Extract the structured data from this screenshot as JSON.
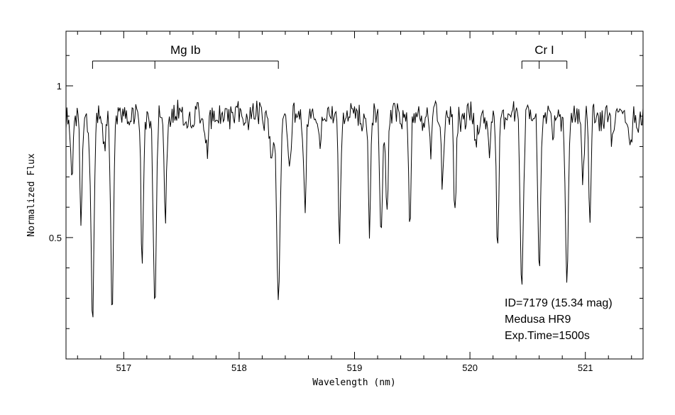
{
  "chart_data": {
    "type": "line",
    "title": "",
    "xlabel": "Wavelength (nm)",
    "ylabel": "Normalized Flux",
    "xlim": [
      516.5,
      521.5
    ],
    "ylim": [
      0.1,
      1.18
    ],
    "x_ticks": [
      517,
      518,
      519,
      520,
      521
    ],
    "x_tick_labels": [
      "517",
      "518",
      "519",
      "520",
      "521"
    ],
    "y_ticks": [
      0.5,
      1
    ],
    "y_tick_labels": [
      "0.5",
      "1"
    ],
    "grid": false,
    "continuum": 0.9,
    "noise_amplitude": 0.04,
    "absorption_lines": [
      {
        "center": 516.55,
        "depth": 0.18,
        "width": 0.012
      },
      {
        "center": 516.63,
        "depth": 0.4,
        "width": 0.01
      },
      {
        "center": 516.73,
        "depth": 0.65,
        "width": 0.014
      },
      {
        "center": 516.83,
        "depth": 0.12,
        "width": 0.01
      },
      {
        "center": 516.9,
        "depth": 0.62,
        "width": 0.012
      },
      {
        "center": 517.16,
        "depth": 0.48,
        "width": 0.011
      },
      {
        "center": 517.27,
        "depth": 0.66,
        "width": 0.013
      },
      {
        "center": 517.36,
        "depth": 0.34,
        "width": 0.011
      },
      {
        "center": 517.72,
        "depth": 0.1,
        "width": 0.012
      },
      {
        "center": 518.28,
        "depth": 0.12,
        "width": 0.015
      },
      {
        "center": 518.34,
        "depth": 0.6,
        "width": 0.016
      },
      {
        "center": 518.44,
        "depth": 0.16,
        "width": 0.012
      },
      {
        "center": 518.57,
        "depth": 0.3,
        "width": 0.01
      },
      {
        "center": 518.7,
        "depth": 0.12,
        "width": 0.01
      },
      {
        "center": 518.87,
        "depth": 0.41,
        "width": 0.011
      },
      {
        "center": 519.13,
        "depth": 0.37,
        "width": 0.01
      },
      {
        "center": 519.23,
        "depth": 0.42,
        "width": 0.011
      },
      {
        "center": 519.28,
        "depth": 0.34,
        "width": 0.01
      },
      {
        "center": 519.48,
        "depth": 0.38,
        "width": 0.01
      },
      {
        "center": 519.66,
        "depth": 0.12,
        "width": 0.01
      },
      {
        "center": 519.76,
        "depth": 0.2,
        "width": 0.01
      },
      {
        "center": 519.87,
        "depth": 0.33,
        "width": 0.01
      },
      {
        "center": 520.05,
        "depth": 0.1,
        "width": 0.012
      },
      {
        "center": 520.17,
        "depth": 0.14,
        "width": 0.01
      },
      {
        "center": 520.24,
        "depth": 0.46,
        "width": 0.01
      },
      {
        "center": 520.45,
        "depth": 0.53,
        "width": 0.013
      },
      {
        "center": 520.6,
        "depth": 0.5,
        "width": 0.011
      },
      {
        "center": 520.72,
        "depth": 0.1,
        "width": 0.01
      },
      {
        "center": 520.84,
        "depth": 0.56,
        "width": 0.013
      },
      {
        "center": 520.98,
        "depth": 0.2,
        "width": 0.01
      },
      {
        "center": 521.04,
        "depth": 0.36,
        "width": 0.01
      },
      {
        "center": 521.23,
        "depth": 0.1,
        "width": 0.01
      },
      {
        "center": 521.39,
        "depth": 0.14,
        "width": 0.01
      }
    ],
    "line_groups": [
      {
        "label": "Mg Ib",
        "start": 516.73,
        "end": 518.34,
        "ticks": [
          516.73,
          517.27,
          518.34
        ]
      },
      {
        "label": "Cr I",
        "start": 520.45,
        "end": 520.84,
        "ticks": [
          520.45,
          520.6,
          520.84
        ]
      }
    ],
    "annotations": [
      "ID=7179 (15.34 mag)",
      "Medusa HR9",
      "Exp.Time=1500s"
    ]
  }
}
